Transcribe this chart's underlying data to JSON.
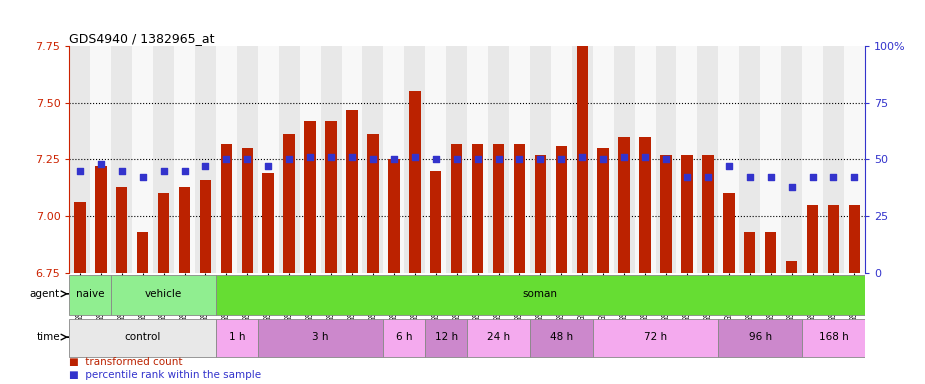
{
  "title": "GDS4940 / 1382965_at",
  "samples": [
    "GSM338857",
    "GSM338858",
    "GSM338859",
    "GSM338862",
    "GSM338864",
    "GSM338877",
    "GSM338880",
    "GSM338860",
    "GSM338861",
    "GSM338863",
    "GSM338865",
    "GSM338866",
    "GSM338867",
    "GSM338868",
    "GSM338869",
    "GSM338870",
    "GSM338871",
    "GSM338872",
    "GSM338873",
    "GSM338874",
    "GSM338875",
    "GSM338876",
    "GSM338878",
    "GSM338879",
    "GSM338881",
    "GSM338882",
    "GSM338883",
    "GSM338884",
    "GSM338885",
    "GSM338886",
    "GSM338887",
    "GSM338888",
    "GSM338889",
    "GSM338890",
    "GSM338891",
    "GSM338892",
    "GSM338893",
    "GSM338894"
  ],
  "bar_values": [
    7.06,
    7.22,
    7.13,
    6.93,
    7.1,
    7.13,
    7.16,
    7.32,
    7.3,
    7.19,
    7.36,
    7.42,
    7.42,
    7.47,
    7.36,
    7.25,
    7.55,
    7.2,
    7.32,
    7.32,
    7.32,
    7.32,
    7.27,
    7.31,
    7.87,
    7.3,
    7.35,
    7.35,
    7.27,
    7.27,
    7.27,
    7.1,
    6.93,
    6.93,
    6.8,
    7.05,
    7.05,
    7.05
  ],
  "percentile_values": [
    45,
    48,
    45,
    42,
    45,
    45,
    47,
    50,
    50,
    47,
    50,
    51,
    51,
    51,
    50,
    50,
    51,
    50,
    50,
    50,
    50,
    50,
    50,
    50,
    51,
    50,
    51,
    51,
    50,
    42,
    42,
    47,
    42,
    42,
    38,
    42,
    42,
    42
  ],
  "ylim_left": [
    6.75,
    7.75
  ],
  "ylim_right": [
    0,
    100
  ],
  "yticks_left": [
    6.75,
    7.0,
    7.25,
    7.5,
    7.75
  ],
  "yticks_right": [
    0,
    25,
    50,
    75,
    100
  ],
  "bar_color": "#BB2200",
  "percentile_color": "#3333CC",
  "col_bg_even": "#E8E8E8",
  "col_bg_odd": "#F8F8F8",
  "agent_groups": [
    {
      "label": "naive",
      "start": 0,
      "end": 2,
      "color": "#90EE90"
    },
    {
      "label": "vehicle",
      "start": 2,
      "end": 7,
      "color": "#90EE90"
    },
    {
      "label": "soman",
      "start": 7,
      "end": 38,
      "color": "#66DD33"
    }
  ],
  "time_groups": [
    {
      "label": "control",
      "start": 0,
      "end": 7,
      "color": "#E8E8E8"
    },
    {
      "label": "1 h",
      "start": 7,
      "end": 9,
      "color": "#F4AAEE"
    },
    {
      "label": "3 h",
      "start": 9,
      "end": 15,
      "color": "#CC88CC"
    },
    {
      "label": "6 h",
      "start": 15,
      "end": 17,
      "color": "#F4AAEE"
    },
    {
      "label": "12 h",
      "start": 17,
      "end": 19,
      "color": "#CC88CC"
    },
    {
      "label": "24 h",
      "start": 19,
      "end": 22,
      "color": "#F4AAEE"
    },
    {
      "label": "48 h",
      "start": 22,
      "end": 25,
      "color": "#CC88CC"
    },
    {
      "label": "72 h",
      "start": 25,
      "end": 31,
      "color": "#F4AAEE"
    },
    {
      "label": "96 h",
      "start": 31,
      "end": 35,
      "color": "#CC88CC"
    },
    {
      "label": "168 h",
      "start": 35,
      "end": 38,
      "color": "#F4AAEE"
    }
  ],
  "legend_bar_label": "transformed count",
  "legend_pct_label": "percentile rank within the sample"
}
